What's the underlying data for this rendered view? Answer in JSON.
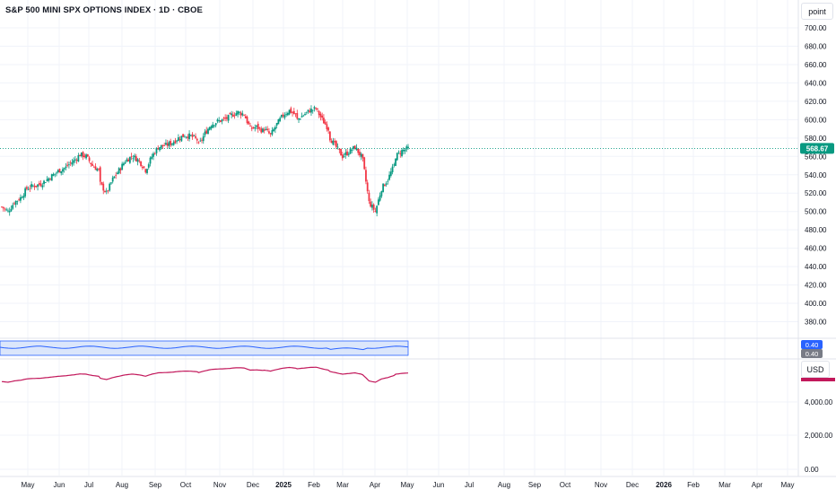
{
  "title": "S&P 500 MINI SPX OPTIONS INDEX · 1D · CBOE",
  "unit_button": "point",
  "currency_button": "USD",
  "price_axis": {
    "ticks": [
      "700.00",
      "680.00",
      "660.00",
      "640.00",
      "620.00",
      "600.00",
      "580.00",
      "560.00",
      "540.00",
      "520.00",
      "500.00",
      "480.00",
      "460.00",
      "440.00",
      "420.00",
      "400.00",
      "380.00"
    ],
    "last_price_label": "568.67",
    "last_price_color": "#089981"
  },
  "indicator_pane": {
    "value_labels": [
      "0.40",
      "0.40"
    ],
    "line_color": "#2962ff",
    "band_fill": "#dbe6fb"
  },
  "lower_pane": {
    "ticks": [
      "4,000.00",
      "2,000.00",
      "0.00"
    ],
    "line_color": "#c2185b"
  },
  "time_axis": {
    "labels": [
      "May",
      "Jun",
      "Jul",
      "Aug",
      "Sep",
      "Oct",
      "Nov",
      "Dec",
      "2025",
      "Feb",
      "Mar",
      "Apr",
      "May",
      "Jun",
      "Jul",
      "Aug",
      "Sep",
      "Oct",
      "Nov",
      "Dec",
      "2026",
      "Feb",
      "Mar",
      "Apr",
      "May"
    ],
    "bold_labels": [
      "2025",
      "2026"
    ]
  },
  "colors": {
    "up": "#089981",
    "down": "#f23645",
    "grid": "#f0f3fa",
    "axis_text": "#131722"
  },
  "chart_data": {
    "type": "candlestick",
    "title": "S&P 500 MINI SPX OPTIONS INDEX · 1D · CBOE",
    "ylabel": "point",
    "ylim": [
      370,
      720
    ],
    "last_value": 568.67,
    "x_start": "May 2024",
    "x_end": "May 2025",
    "close_series_monthly": [
      {
        "month": "2024-05",
        "close": [
          505,
          500,
          510,
          515,
          525,
          528
        ]
      },
      {
        "month": "2024-06",
        "close": [
          528,
          530,
          535,
          540,
          545,
          548
        ]
      },
      {
        "month": "2024-07",
        "close": [
          550,
          555,
          562,
          560,
          550,
          545
        ]
      },
      {
        "month": "2024-08",
        "close": [
          530,
          520,
          535,
          545,
          555,
          560
        ]
      },
      {
        "month": "2024-09",
        "close": [
          560,
          555,
          545,
          560,
          570,
          572
        ]
      },
      {
        "month": "2024-10",
        "close": [
          572,
          575,
          580,
          583,
          582,
          578
        ]
      },
      {
        "month": "2024-11",
        "close": [
          572,
          585,
          595,
          598,
          600,
          603
        ]
      },
      {
        "month": "2024-12",
        "close": [
          605,
          608,
          606,
          590,
          592,
          588
        ]
      },
      {
        "month": "2025-01",
        "close": [
          590,
          583,
          595,
          605,
          610,
          605
        ]
      },
      {
        "month": "2025-02",
        "close": [
          600,
          605,
          610,
          612,
          600,
          590
        ]
      },
      {
        "month": "2025-03",
        "close": [
          580,
          570,
          560,
          565,
          570,
          560
        ]
      },
      {
        "month": "2025-04",
        "close": [
          555,
          510,
          500,
          525,
          535,
          550
        ]
      },
      {
        "month": "2025-05",
        "close": [
          560,
          566,
          568.67
        ]
      }
    ]
  }
}
